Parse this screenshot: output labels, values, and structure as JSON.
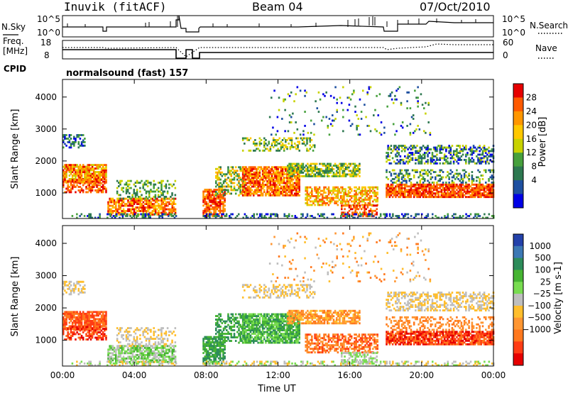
{
  "header": {
    "station": "Inuvik (fitACF)",
    "beam": "Beam 04",
    "date": "07/Oct/2010"
  },
  "chart_data": [
    {
      "type": "line",
      "name": "status-panel-1",
      "left_label": "N.Sky",
      "left_ticks": [
        "10^5",
        "10^0"
      ],
      "right_label": "N.Search",
      "right_ticks": [
        "10^5",
        "10^0"
      ]
    },
    {
      "type": "line",
      "name": "status-panel-2",
      "left_label": [
        "Freq.",
        "[MHz]"
      ],
      "left_ticks": [
        "18",
        "8"
      ],
      "right_label": "Nave",
      "right_ticks": [
        "60",
        "0"
      ],
      "cpid_label": "CPID",
      "cpid_text": "normalsound (fast) 157"
    },
    {
      "type": "heatmap",
      "name": "power",
      "ylabel": "Slant Range [km]",
      "y_ticks": [
        1000,
        2000,
        3000,
        4000
      ],
      "ylim": [
        200,
        4550
      ],
      "x_ticks": [
        0,
        4,
        8,
        12,
        16,
        20,
        24
      ],
      "colorbar_label": "Power [dB]",
      "colorbar_ticks": [
        "28",
        "24",
        "20",
        "16",
        "12",
        "8",
        "4"
      ],
      "colorbar_colors": [
        "#e60000",
        "#ff5a00",
        "#ff9600",
        "#ffc800",
        "#c8d200",
        "#46a03c",
        "#2d7850",
        "#1e50a0",
        "#0000e6"
      ]
    },
    {
      "type": "heatmap",
      "name": "velocity",
      "ylabel": "Slant Range [km]",
      "y_ticks": [
        1000,
        2000,
        3000,
        4000
      ],
      "ylim": [
        200,
        4550
      ],
      "x_ticks": [
        0,
        4,
        8,
        12,
        16,
        20,
        24
      ],
      "x_tick_labels": [
        "00:00",
        "04:00",
        "08:00",
        "12:00",
        "16:00",
        "20:00",
        "00:00"
      ],
      "xlabel": "Time UT",
      "colorbar_label": "Velocity [m s-1]",
      "colorbar_ticks": [
        "1000",
        "500",
        "100",
        "25",
        "−25",
        "−100",
        "−500",
        "−1000"
      ],
      "colorbar_colors": [
        "#2341aa",
        "#3c78b4",
        "#2d8c5a",
        "#46b432",
        "#78dc50",
        "#bebebe",
        "#ffbe2d",
        "#ff9632",
        "#ff781e",
        "#ff3c14",
        "#e60000"
      ]
    }
  ]
}
